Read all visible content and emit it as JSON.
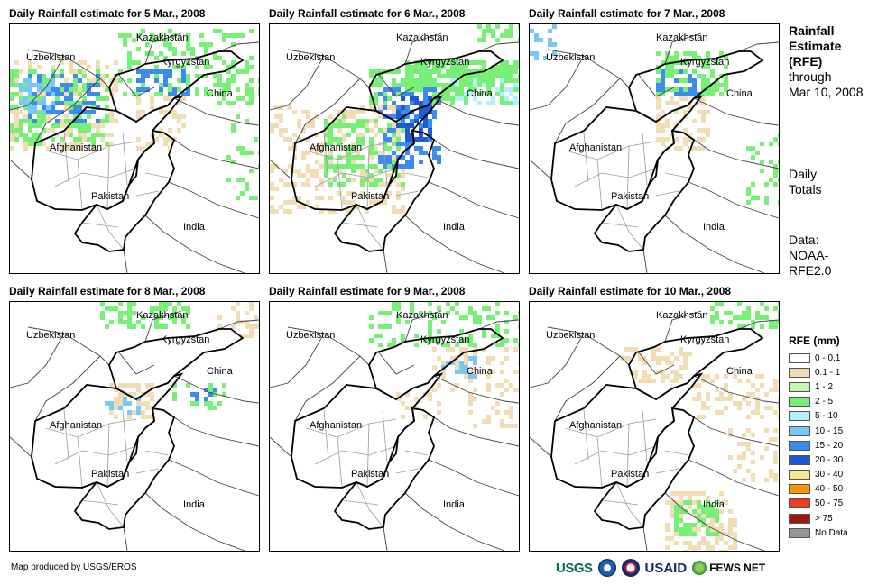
{
  "panels": [
    {
      "title": "Daily Rainfall estimate for 5 Mar., 2008"
    },
    {
      "title": "Daily Rainfall estimate for 6 Mar., 2008"
    },
    {
      "title": "Daily Rainfall estimate for 7 Mar., 2008"
    },
    {
      "title": "Daily Rainfall estimate for 8 Mar., 2008"
    },
    {
      "title": "Daily Rainfall estimate for 9 Mar., 2008"
    },
    {
      "title": "Daily Rainfall estimate for 10 Mar., 2008"
    }
  ],
  "map_labels": {
    "kazakhstan": "Kazakhstan",
    "uzbekistan": "Uzbekistan",
    "kyrgyzstan": "Kyrgyzstan",
    "china": "China",
    "afghanistan": "Afghanistan",
    "pakistan": "Pakistan",
    "india": "India"
  },
  "sidebar": {
    "title_line1": "Rainfall",
    "title_line2": "Estimate",
    "title_line3": "(RFE)",
    "through_line1": "through",
    "through_line2": "Mar 10, 2008",
    "daily_line1": "Daily",
    "daily_line2": "Totals",
    "data_line1": "Data:",
    "data_line2": "NOAA-",
    "data_line3": "RFE2.0"
  },
  "legend": {
    "title": "RFE (mm)",
    "items": [
      {
        "label": "0 - 0.1",
        "color": "#ffffff"
      },
      {
        "label": "0.1 - 1",
        "color": "#f2dcb4"
      },
      {
        "label": "1 - 2",
        "color": "#c8f5b4"
      },
      {
        "label": "2 - 5",
        "color": "#78f078"
      },
      {
        "label": "5 - 10",
        "color": "#b4f0fa"
      },
      {
        "label": "10 - 15",
        "color": "#78c8f5"
      },
      {
        "label": "15 - 20",
        "color": "#3c8cf0"
      },
      {
        "label": "20 - 30",
        "color": "#1e5ad2"
      },
      {
        "label": "30 - 40",
        "color": "#fae68c"
      },
      {
        "label": "40 - 50",
        "color": "#fa9600"
      },
      {
        "label": "50 - 75",
        "color": "#f03c1e"
      },
      {
        "label": "> 75",
        "color": "#a01414"
      },
      {
        "label": "No Data",
        "color": "#969696"
      }
    ]
  },
  "footer": {
    "credit": "Map produced by USGS/EROS",
    "logo_usgs": "USGS",
    "logo_usaid": "USAID",
    "logo_fews": "FEWS NET"
  }
}
